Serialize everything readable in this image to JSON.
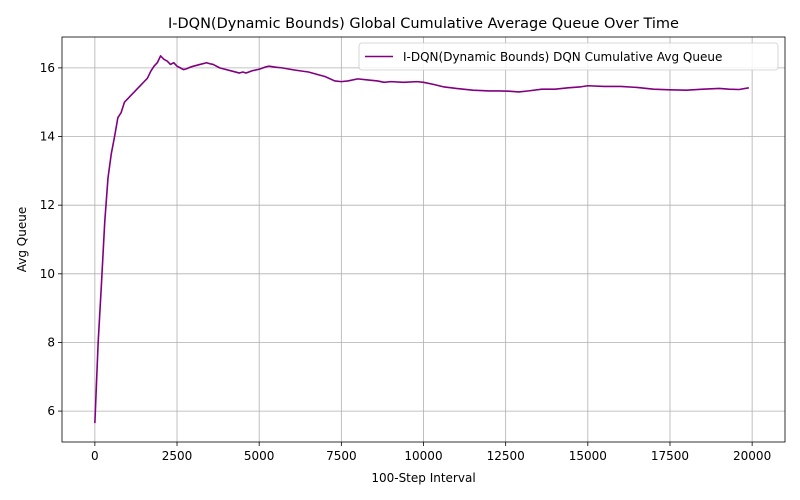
{
  "chart_data": {
    "type": "line",
    "title": "I-DQN(Dynamic Bounds) Global Cumulative Average Queue Over Time",
    "xlabel": "100-Step Interval",
    "ylabel": "Avg Queue",
    "xlim": [
      -1000,
      21000
    ],
    "ylim": [
      5.1,
      16.9
    ],
    "xticks": [
      0,
      2500,
      5000,
      7500,
      10000,
      12500,
      15000,
      17500,
      20000
    ],
    "yticks": [
      6,
      8,
      10,
      12,
      14,
      16
    ],
    "grid": true,
    "legend_position": "upper right",
    "series": [
      {
        "name": "I-DQN(Dynamic Bounds) DQN Cumulative Avg Queue",
        "color": "#800080",
        "x": [
          0,
          100,
          200,
          300,
          400,
          500,
          600,
          700,
          800,
          900,
          1000,
          1100,
          1200,
          1300,
          1400,
          1500,
          1600,
          1700,
          1800,
          1900,
          2000,
          2100,
          2200,
          2300,
          2400,
          2500,
          2600,
          2700,
          2800,
          2900,
          3000,
          3200,
          3400,
          3500,
          3600,
          3700,
          3800,
          4000,
          4200,
          4400,
          4500,
          4600,
          4800,
          5000,
          5200,
          5300,
          5500,
          5700,
          6000,
          6200,
          6500,
          6800,
          7000,
          7300,
          7500,
          7700,
          8000,
          8300,
          8600,
          8800,
          9000,
          9400,
          9800,
          10000,
          10300,
          10600,
          11000,
          11500,
          12000,
          12300,
          12600,
          12900,
          13200,
          13600,
          14000,
          14400,
          14800,
          15000,
          15500,
          16000,
          16500,
          17000,
          17500,
          18000,
          18500,
          19000,
          19300,
          19600,
          19900
        ],
        "y": [
          5.65,
          8.0,
          9.7,
          11.5,
          12.8,
          13.5,
          14.0,
          14.55,
          14.7,
          15.0,
          15.1,
          15.2,
          15.3,
          15.4,
          15.5,
          15.6,
          15.7,
          15.9,
          16.05,
          16.15,
          16.35,
          16.25,
          16.2,
          16.1,
          16.15,
          16.05,
          16.0,
          15.95,
          15.98,
          16.02,
          16.05,
          16.1,
          16.15,
          16.12,
          16.1,
          16.05,
          16.0,
          15.95,
          15.9,
          15.85,
          15.88,
          15.85,
          15.92,
          15.96,
          16.03,
          16.05,
          16.02,
          16.0,
          15.95,
          15.92,
          15.88,
          15.8,
          15.75,
          15.62,
          15.6,
          15.62,
          15.68,
          15.65,
          15.62,
          15.58,
          15.6,
          15.58,
          15.6,
          15.58,
          15.52,
          15.45,
          15.4,
          15.35,
          15.33,
          15.33,
          15.32,
          15.3,
          15.33,
          15.38,
          15.38,
          15.42,
          15.45,
          15.48,
          15.46,
          15.46,
          15.43,
          15.38,
          15.36,
          15.35,
          15.38,
          15.4,
          15.38,
          15.37,
          15.42
        ]
      }
    ]
  }
}
